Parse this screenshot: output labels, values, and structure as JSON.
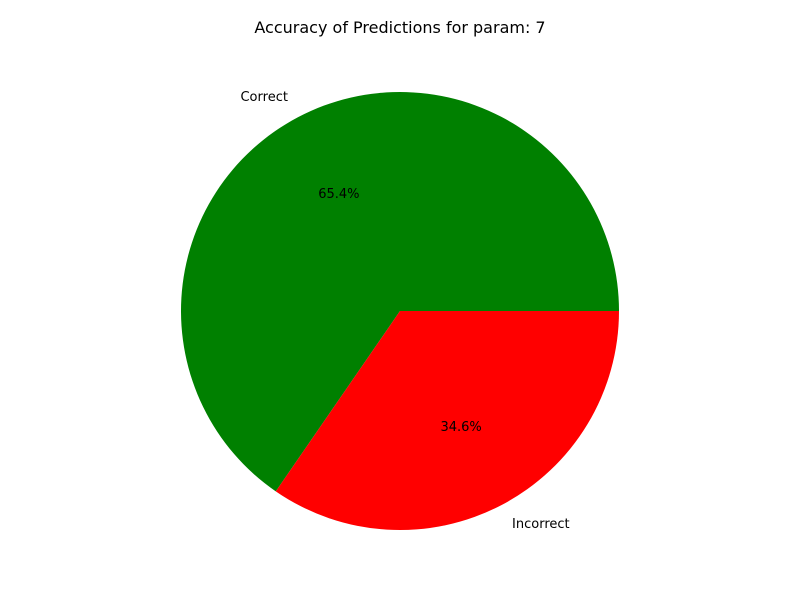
{
  "chart_data": {
    "type": "pie",
    "title": "Accuracy of Predictions for param: 7",
    "slices": [
      {
        "label": "Correct",
        "value": 65.4,
        "pct_label": "65.4%",
        "color": "#008000"
      },
      {
        "label": "Incorrect",
        "value": 34.6,
        "pct_label": "34.6%",
        "color": "#ff0000"
      }
    ],
    "start_angle_deg": 0,
    "direction": "counterclockwise",
    "legend": "none"
  }
}
